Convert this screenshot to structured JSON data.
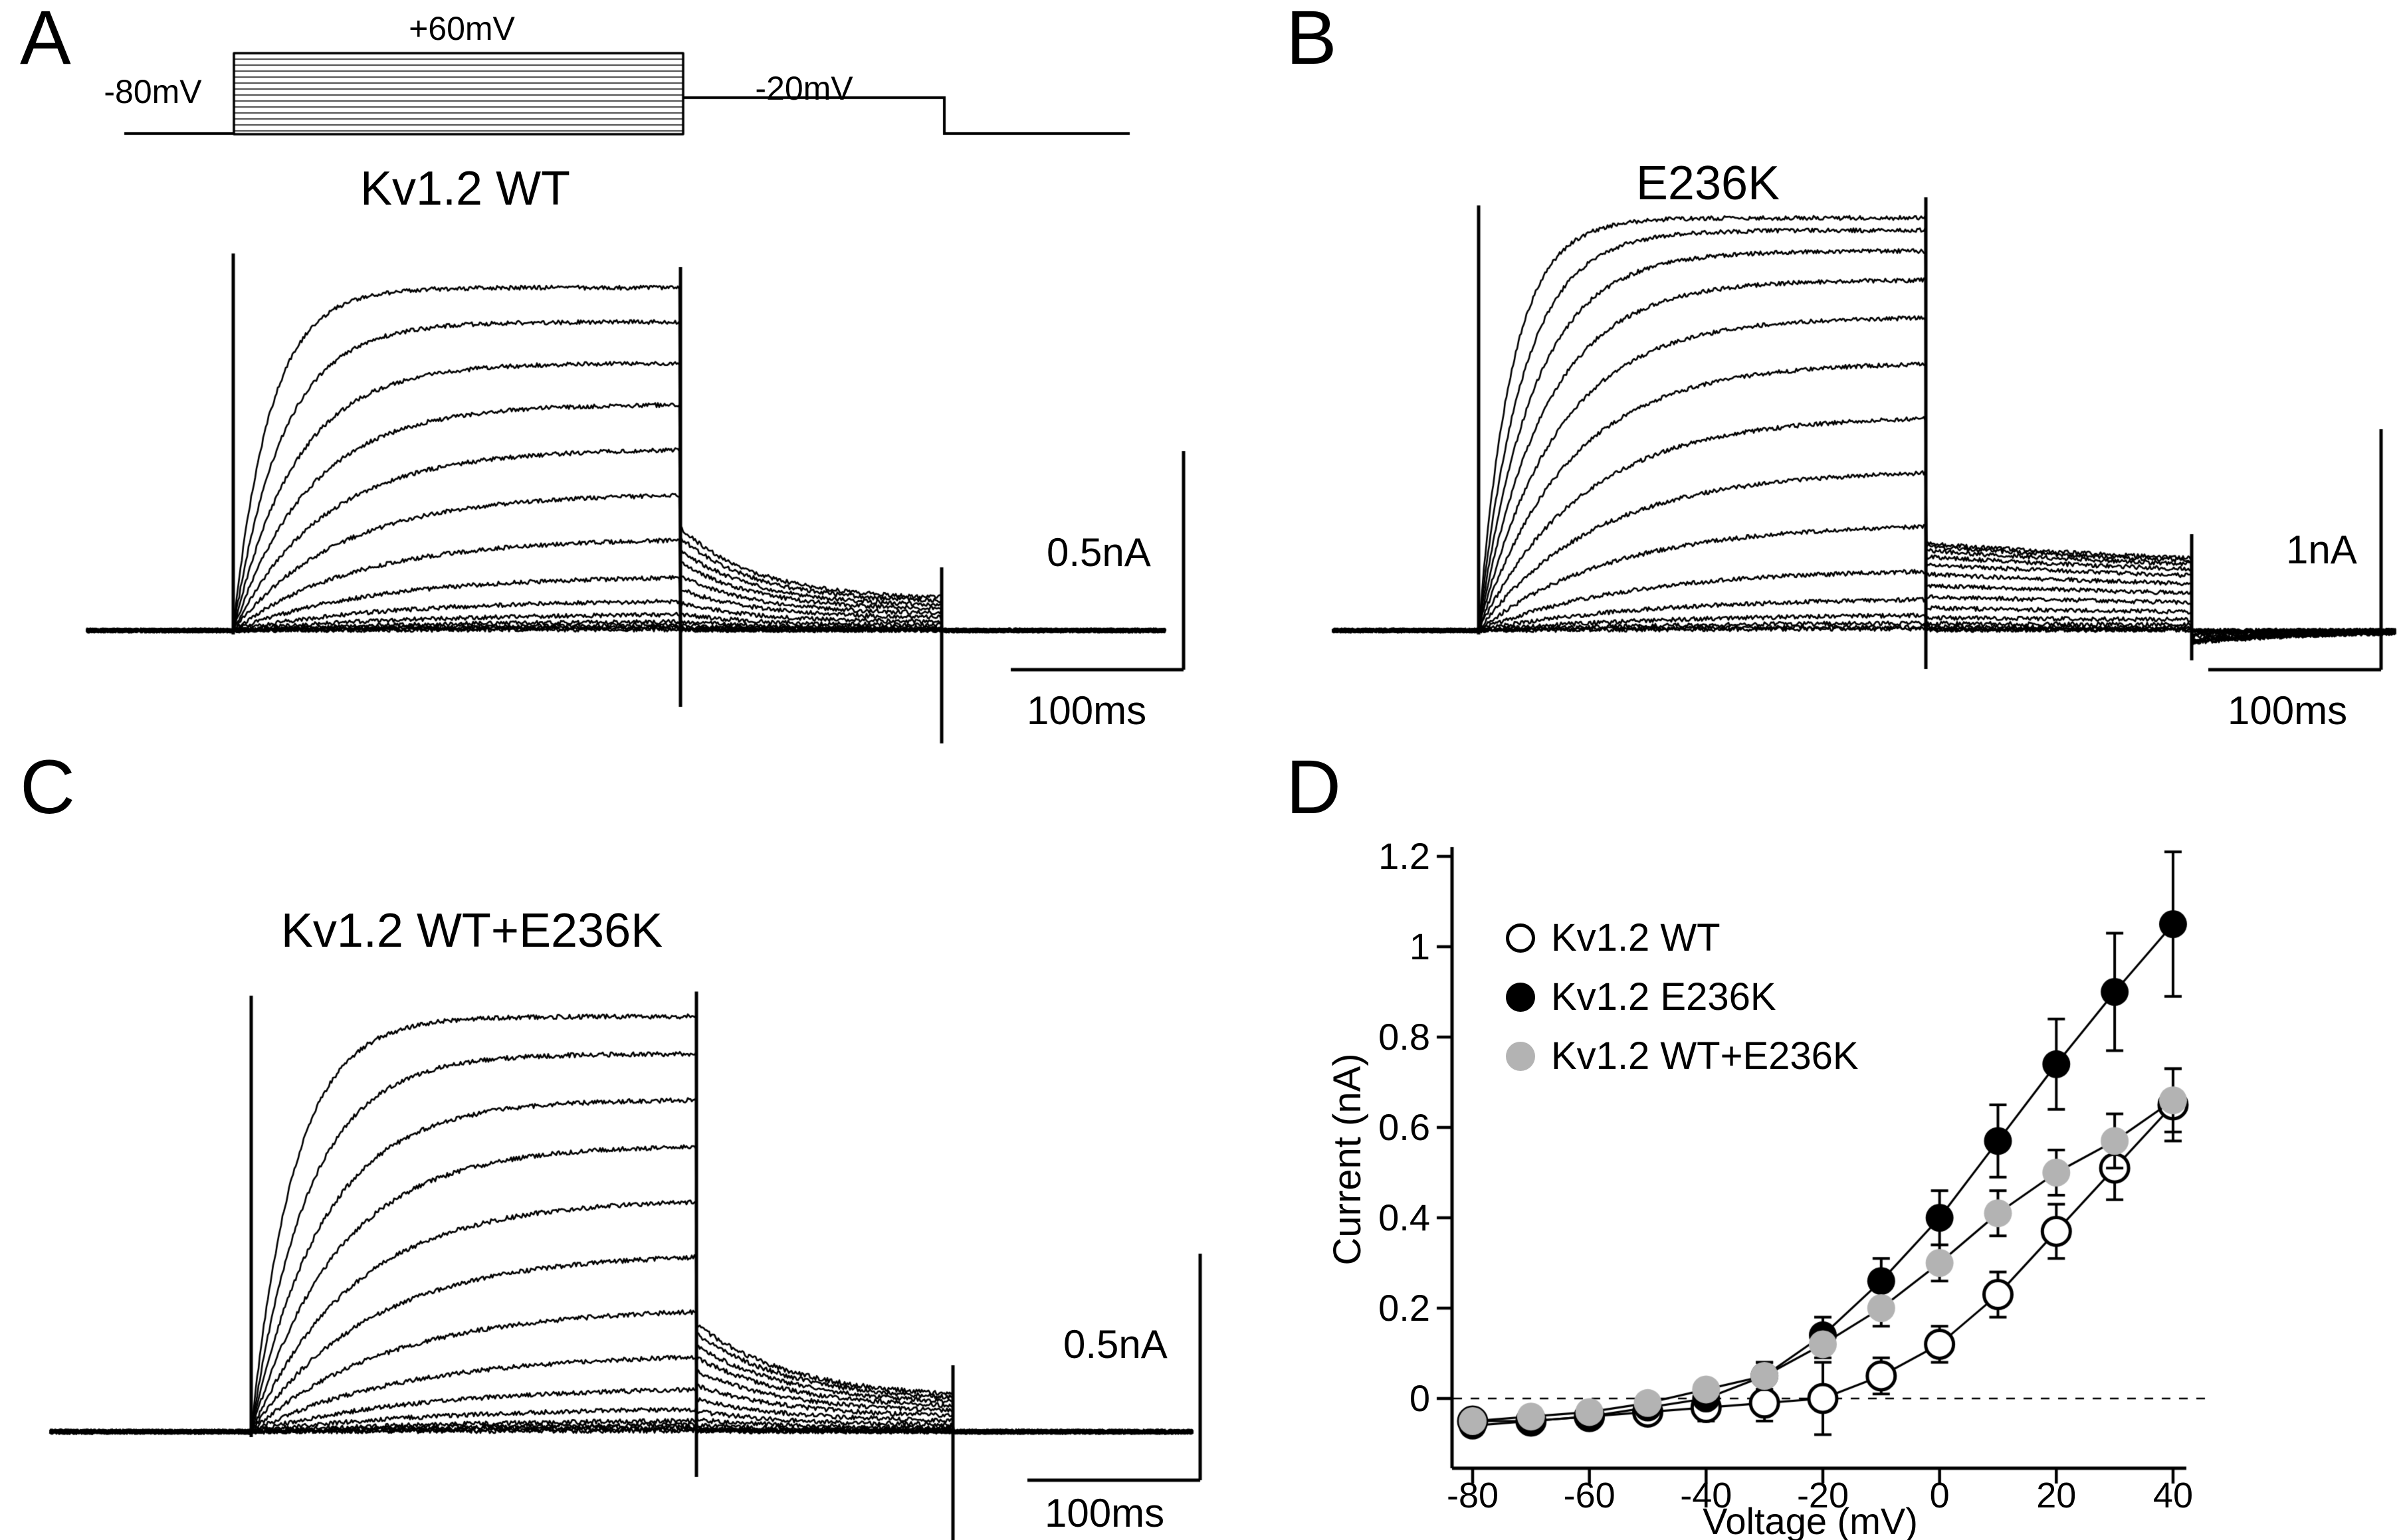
{
  "figure": {
    "background": "#ffffff",
    "ink_color": "#000000",
    "gray_accent": "#b3b3b3",
    "panel_labels": [
      "A",
      "B",
      "C",
      "D"
    ]
  },
  "panels": {
    "a": {
      "label": "A",
      "title": "Kv1.2 WT",
      "protocol": {
        "holding": "-80mV",
        "step": "+60mV",
        "tail": "-20mV"
      },
      "scale_current": "0.5nA",
      "scale_time": "100ms"
    },
    "b": {
      "label": "B",
      "title": "E236K",
      "scale_current": "1nA",
      "scale_time": "100ms"
    },
    "c": {
      "label": "C",
      "title": "Kv1.2 WT+E236K",
      "scale_current": "0.5nA",
      "scale_time": "100ms"
    },
    "d": {
      "label": "D",
      "xlabel": "Voltage (mV)",
      "ylabel": "Current (nA)"
    }
  },
  "chart_data": [
    {
      "panel": "A",
      "type": "line",
      "subtype": "current-trace-family",
      "title": "Kv1.2 WT",
      "voltage_protocol": {
        "holding_mV": -80,
        "steps_from_mV": -80,
        "steps_to_mV": 60,
        "increment_mV": 10,
        "tail_mV": -20
      },
      "scale_bar": {
        "current": "0.5nA",
        "time": "100ms"
      },
      "n_traces": 15,
      "relative_amplitudes": [
        0.004,
        0.008,
        0.012,
        0.018,
        0.028,
        0.05,
        0.09,
        0.16,
        0.27,
        0.4,
        0.53,
        0.66,
        0.78,
        0.9,
        1.0
      ],
      "approx_peak_current_nA": 0.8
    },
    {
      "panel": "B",
      "type": "line",
      "subtype": "current-trace-family",
      "title": "E236K",
      "voltage_protocol": {
        "holding_mV": -80,
        "steps_from_mV": -80,
        "steps_to_mV": 60,
        "increment_mV": 10,
        "tail_mV": -20
      },
      "scale_bar": {
        "current": "1nA",
        "time": "100ms"
      },
      "n_traces": 15,
      "relative_amplitudes": [
        0.005,
        0.01,
        0.02,
        0.04,
        0.08,
        0.15,
        0.26,
        0.39,
        0.52,
        0.65,
        0.76,
        0.85,
        0.92,
        0.97,
        1.0
      ],
      "approx_peak_current_nA": 1.9
    },
    {
      "panel": "C",
      "type": "line",
      "subtype": "current-trace-family",
      "title": "Kv1.2 WT+E236K",
      "voltage_protocol": {
        "holding_mV": -80,
        "steps_from_mV": -80,
        "steps_to_mV": 60,
        "increment_mV": 10,
        "tail_mV": -20
      },
      "scale_bar": {
        "current": "0.5nA",
        "time": "100ms"
      },
      "n_traces": 15,
      "relative_amplitudes": [
        0.004,
        0.008,
        0.014,
        0.02,
        0.03,
        0.06,
        0.11,
        0.19,
        0.3,
        0.43,
        0.56,
        0.69,
        0.8,
        0.91,
        1.0
      ],
      "approx_peak_current_nA": 0.95
    },
    {
      "panel": "D",
      "type": "scatter",
      "xlabel": "Voltage (mV)",
      "ylabel": "Current (nA)",
      "x": [
        -80,
        -70,
        -60,
        -50,
        -40,
        -30,
        -20,
        -10,
        0,
        10,
        20,
        30,
        40
      ],
      "series": [
        {
          "name": "Kv1.2 WT",
          "marker": "open",
          "color": "#ffffff",
          "stroke": "#000000",
          "values": [
            -0.05,
            -0.05,
            -0.04,
            -0.03,
            -0.02,
            -0.01,
            0.0,
            0.05,
            0.12,
            0.23,
            0.37,
            0.51,
            0.65
          ],
          "errors": [
            0.02,
            0.02,
            0.02,
            0.02,
            0.03,
            0.04,
            0.08,
            0.04,
            0.04,
            0.05,
            0.06,
            0.07,
            0.08
          ]
        },
        {
          "name": "Kv1.2 E236K",
          "marker": "filled",
          "color": "#000000",
          "stroke": "#000000",
          "values": [
            -0.06,
            -0.05,
            -0.04,
            -0.02,
            0.0,
            0.05,
            0.14,
            0.26,
            0.4,
            0.57,
            0.74,
            0.9,
            1.05
          ],
          "errors": [
            0.02,
            0.02,
            0.02,
            0.02,
            0.02,
            0.03,
            0.04,
            0.05,
            0.06,
            0.08,
            0.1,
            0.13,
            0.16
          ]
        },
        {
          "name": "Kv1.2 WT+E236K",
          "marker": "filled",
          "color": "#b3b3b3",
          "stroke": "#000000",
          "values": [
            -0.05,
            -0.04,
            -0.03,
            -0.01,
            0.02,
            0.05,
            0.12,
            0.2,
            0.3,
            0.41,
            0.5,
            0.57,
            0.66
          ],
          "errors": [
            0.02,
            0.02,
            0.02,
            0.02,
            0.02,
            0.03,
            0.03,
            0.04,
            0.04,
            0.05,
            0.05,
            0.06,
            0.07
          ]
        }
      ],
      "xticks": [
        -80,
        -60,
        -40,
        -20,
        0,
        20,
        40
      ],
      "yticks": [
        0,
        0.2,
        0.4,
        0.6,
        0.8,
        1,
        1.2
      ],
      "xlim": [
        -80,
        40
      ],
      "ylim": [
        -0.16,
        1.25
      ],
      "zero_reference_line": "dashed",
      "grid": false,
      "legend_position": "top-left",
      "legend_entries": [
        "Kv1.2 WT",
        "Kv1.2 E236K",
        "Kv1.2 WT+E236K"
      ]
    }
  ]
}
